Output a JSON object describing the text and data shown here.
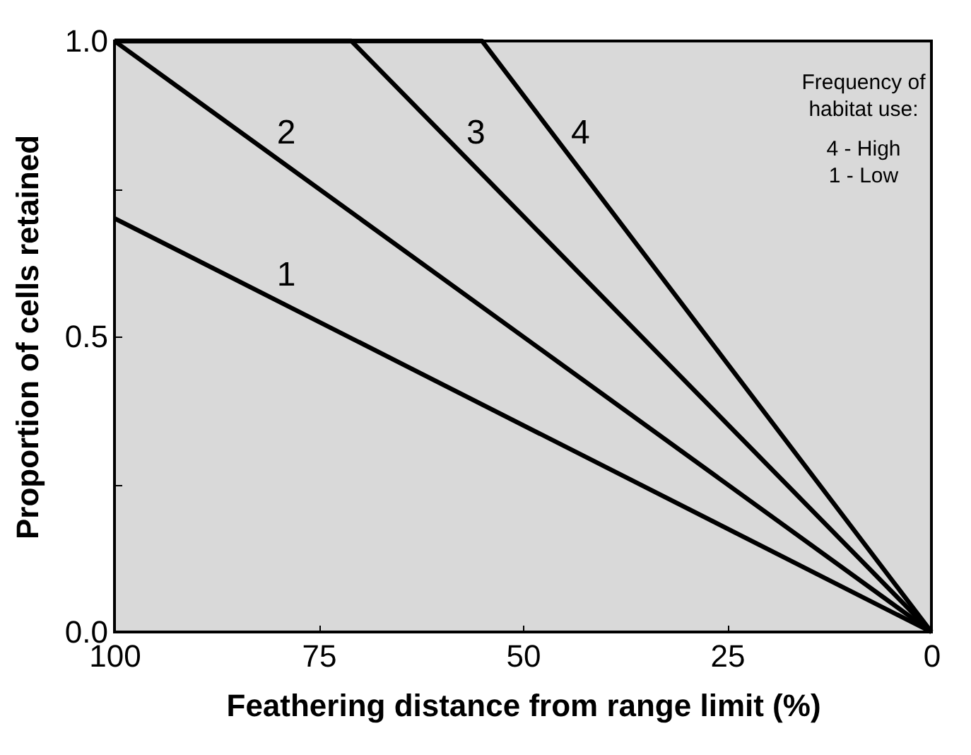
{
  "chart_data": {
    "type": "line",
    "xlabel": "Feathering distance from range limit (%)",
    "ylabel": "Proportion of cells retained",
    "xlim": [
      100,
      0
    ],
    "xticks": [
      100,
      75,
      50,
      25,
      0
    ],
    "ylim": [
      0,
      1
    ],
    "yticks": [
      {
        "value": 0,
        "label": "0.0"
      },
      {
        "value": 0.25,
        "label": null
      },
      {
        "value": 0.5,
        "label": "0.5"
      },
      {
        "value": 0.75,
        "label": null
      },
      {
        "value": 1,
        "label": "1.0"
      }
    ],
    "grid": false,
    "legend": false,
    "marker": "none",
    "line_style": "solid",
    "annotations": [
      "Frequency of",
      "habitat use:",
      "4  -  High",
      "1  -  Low"
    ],
    "series": [
      {
        "name": "1",
        "color": "#000000",
        "x": [
          0,
          100
        ],
        "values": [
          0,
          0.7
        ]
      },
      {
        "name": "2",
        "color": "#000000",
        "x": [
          0,
          100
        ],
        "values": [
          0,
          1.0
        ]
      },
      {
        "name": "3",
        "color": "#000000",
        "x": [
          0,
          71,
          100
        ],
        "values": [
          0,
          1.0,
          1.0
        ]
      },
      {
        "name": "4",
        "color": "#000000",
        "x": [
          0,
          55,
          100
        ],
        "values": [
          0,
          1.0,
          1.0
        ]
      }
    ]
  }
}
